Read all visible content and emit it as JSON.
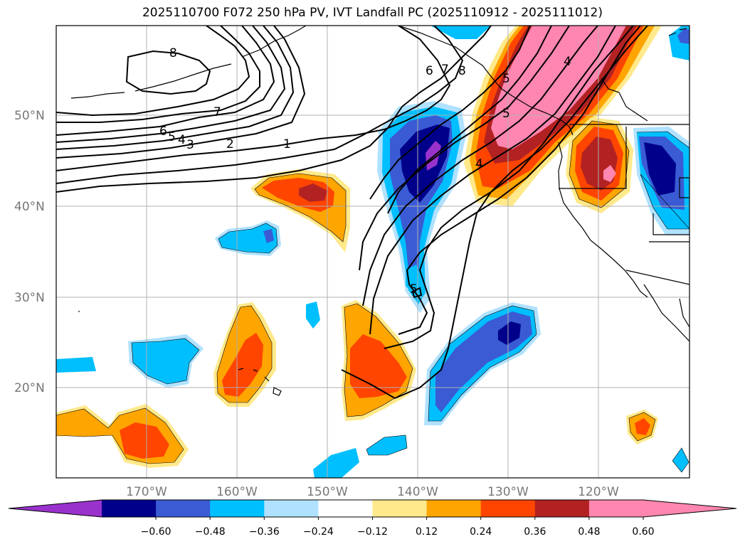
{
  "title": "2025110700 F072 250 hPa PV, IVT Landfall PC (2025110912 - 2025111012)",
  "lat_labels": [
    "50°N",
    "40°N",
    "30°N",
    "20°N"
  ],
  "lon_labels": [
    "170°W",
    "160°W",
    "150°W",
    "140°W",
    "130°W",
    "120°W"
  ],
  "pv_contour_labels": [
    "8",
    "7",
    "6",
    "5",
    "4",
    "3",
    "2",
    "1",
    "6",
    "7",
    "8",
    "5",
    "4",
    "5",
    "5",
    "4"
  ],
  "colorbar": {
    "tick_labels": [
      "−0.60",
      "−0.48",
      "−0.36",
      "−0.24",
      "−0.12",
      "0.12",
      "0.24",
      "0.36",
      "0.48",
      "0.60"
    ],
    "colors": [
      "#9932cc",
      "#00008b",
      "#3a5bd4",
      "#00bfff",
      "#b0e2ff",
      "#ffffff",
      "#ffe98a",
      "#ffa500",
      "#ff4500",
      "#b22222",
      "#ff86b0",
      "#ff86b0"
    ]
  }
}
